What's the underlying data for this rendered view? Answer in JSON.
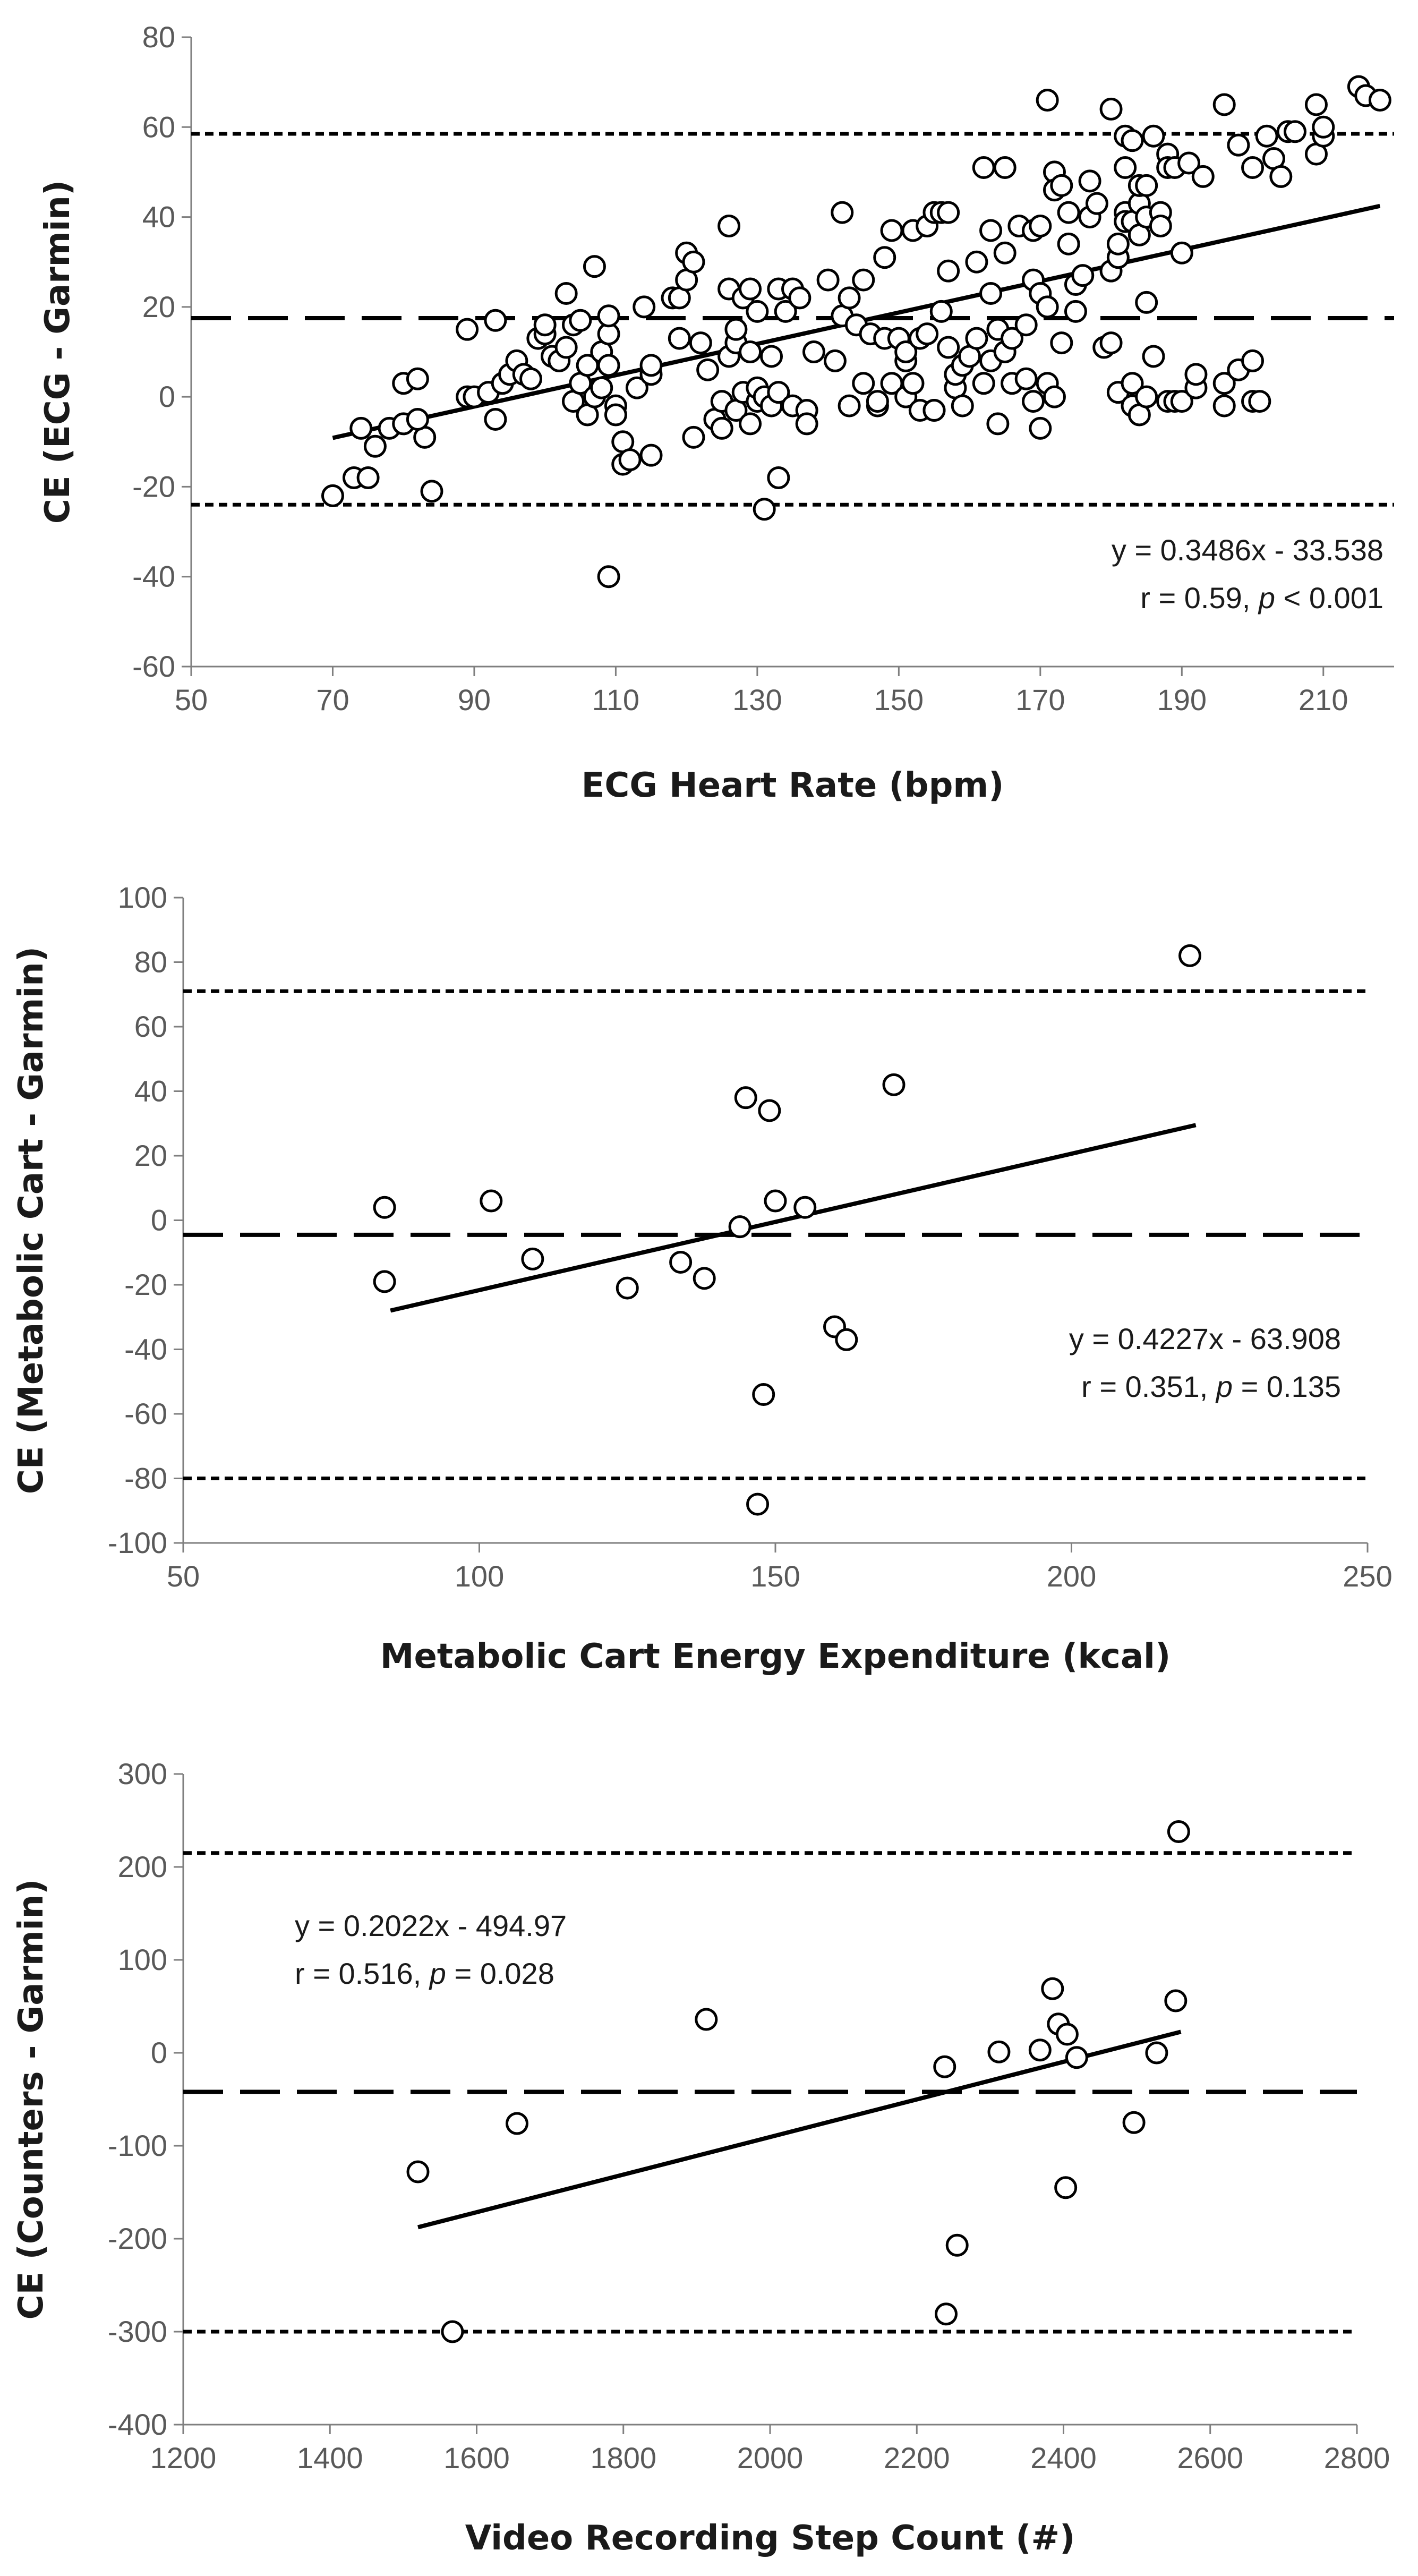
{
  "chart_data": [
    {
      "type": "scatter",
      "title": "",
      "xlabel": "ECG Heart Rate (bpm)",
      "ylabel": "CE (ECG - Garmin)",
      "xlim": [
        50,
        220
      ],
      "ylim": [
        -60,
        80
      ],
      "xticks": [
        50,
        70,
        90,
        110,
        130,
        150,
        170,
        190,
        210
      ],
      "yticks": [
        -60,
        -40,
        -20,
        0,
        20,
        40,
        60,
        80
      ],
      "reference_lines": {
        "mean": 17.5,
        "upper_loa": 58.5,
        "lower_loa": -24
      },
      "regression": {
        "slope": 0.3486,
        "intercept": -33.538,
        "x_range": [
          70,
          218
        ]
      },
      "annotation": {
        "equation": "y = 0.3486x - 33.538",
        "stat_prefix": "r = 0.59, ",
        "stat_italic": "p",
        "stat_suffix": " < 0.001"
      },
      "points": [
        [
          70,
          -22
        ],
        [
          73,
          -18
        ],
        [
          74,
          -7
        ],
        [
          75,
          -18
        ],
        [
          76,
          -11
        ],
        [
          78,
          -7
        ],
        [
          80,
          -6
        ],
        [
          80,
          3
        ],
        [
          82,
          4
        ],
        [
          83,
          -9
        ],
        [
          84,
          -21
        ],
        [
          82,
          -5
        ],
        [
          89,
          0
        ],
        [
          89,
          15
        ],
        [
          90,
          0
        ],
        [
          92,
          1
        ],
        [
          93,
          -5
        ],
        [
          93,
          17
        ],
        [
          94,
          3
        ],
        [
          95,
          5
        ],
        [
          96,
          8
        ],
        [
          97,
          5
        ],
        [
          98,
          4
        ],
        [
          99,
          13
        ],
        [
          100,
          14
        ],
        [
          100,
          16
        ],
        [
          101,
          9
        ],
        [
          102,
          8
        ],
        [
          103,
          11
        ],
        [
          103,
          23
        ],
        [
          104,
          -1
        ],
        [
          104,
          16
        ],
        [
          105,
          17
        ],
        [
          105,
          3
        ],
        [
          106,
          -4
        ],
        [
          106,
          7
        ],
        [
          107,
          0
        ],
        [
          107,
          29
        ],
        [
          108,
          10
        ],
        [
          108,
          2
        ],
        [
          109,
          7
        ],
        [
          109,
          14
        ],
        [
          109,
          18
        ],
        [
          110,
          -2
        ],
        [
          110,
          -4
        ],
        [
          109,
          -40
        ],
        [
          111,
          -10
        ],
        [
          111,
          -15
        ],
        [
          112,
          -14
        ],
        [
          113,
          2
        ],
        [
          114,
          20
        ],
        [
          115,
          -13
        ],
        [
          115,
          5
        ],
        [
          115,
          7
        ],
        [
          118,
          22
        ],
        [
          119,
          13
        ],
        [
          119,
          22
        ],
        [
          120,
          26
        ],
        [
          120,
          32
        ],
        [
          121,
          30
        ],
        [
          121,
          -9
        ],
        [
          122,
          12
        ],
        [
          123,
          6
        ],
        [
          124,
          -5
        ],
        [
          125,
          -1
        ],
        [
          125,
          -7
        ],
        [
          126,
          9
        ],
        [
          126,
          24
        ],
        [
          126,
          38
        ],
        [
          127,
          -3
        ],
        [
          127,
          12
        ],
        [
          127,
          15
        ],
        [
          128,
          22
        ],
        [
          128,
          1
        ],
        [
          129,
          10
        ],
        [
          129,
          24
        ],
        [
          129,
          -6
        ],
        [
          130,
          -1
        ],
        [
          130,
          2
        ],
        [
          130,
          19
        ],
        [
          131,
          -25
        ],
        [
          131,
          0
        ],
        [
          132,
          9
        ],
        [
          132,
          -2
        ],
        [
          133,
          1
        ],
        [
          133,
          24
        ],
        [
          133,
          -18
        ],
        [
          134,
          19
        ],
        [
          135,
          -2
        ],
        [
          135,
          24
        ],
        [
          136,
          22
        ],
        [
          137,
          -3
        ],
        [
          137,
          -6
        ],
        [
          138,
          10
        ],
        [
          140,
          26
        ],
        [
          141,
          8
        ],
        [
          142,
          41
        ],
        [
          142,
          18
        ],
        [
          143,
          -2
        ],
        [
          143,
          22
        ],
        [
          144,
          16
        ],
        [
          145,
          3
        ],
        [
          145,
          26
        ],
        [
          146,
          14
        ],
        [
          147,
          -2
        ],
        [
          147,
          -1
        ],
        [
          148,
          31
        ],
        [
          148,
          13
        ],
        [
          149,
          37
        ],
        [
          149,
          3
        ],
        [
          150,
          13
        ],
        [
          151,
          0
        ],
        [
          151,
          8
        ],
        [
          151,
          10
        ],
        [
          152,
          37
        ],
        [
          152,
          3
        ],
        [
          153,
          13
        ],
        [
          153,
          -3
        ],
        [
          154,
          38
        ],
        [
          154,
          14
        ],
        [
          155,
          -3
        ],
        [
          155,
          -3
        ],
        [
          155,
          41
        ],
        [
          156,
          41
        ],
        [
          156,
          19
        ],
        [
          157,
          41
        ],
        [
          157,
          11
        ],
        [
          157,
          28
        ],
        [
          158,
          2
        ],
        [
          158,
          5
        ],
        [
          159,
          -2
        ],
        [
          159,
          7
        ],
        [
          160,
          9
        ],
        [
          161,
          13
        ],
        [
          161,
          30
        ],
        [
          162,
          3
        ],
        [
          162,
          51
        ],
        [
          163,
          8
        ],
        [
          163,
          23
        ],
        [
          163,
          37
        ],
        [
          164,
          15
        ],
        [
          164,
          -6
        ],
        [
          165,
          51
        ],
        [
          165,
          32
        ],
        [
          165,
          10
        ],
        [
          166,
          3
        ],
        [
          166,
          13
        ],
        [
          167,
          38
        ],
        [
          168,
          4
        ],
        [
          168,
          16
        ],
        [
          169,
          37
        ],
        [
          169,
          26
        ],
        [
          169,
          -1
        ],
        [
          170,
          38
        ],
        [
          170,
          23
        ],
        [
          170,
          -7
        ],
        [
          171,
          66
        ],
        [
          171,
          20
        ],
        [
          171,
          3
        ],
        [
          172,
          0
        ],
        [
          172,
          50
        ],
        [
          172,
          46
        ],
        [
          173,
          12
        ],
        [
          173,
          47
        ],
        [
          174,
          34
        ],
        [
          174,
          41
        ],
        [
          175,
          25
        ],
        [
          175,
          19
        ],
        [
          176,
          27
        ],
        [
          177,
          48
        ],
        [
          177,
          40
        ],
        [
          178,
          43
        ],
        [
          179,
          11
        ],
        [
          180,
          12
        ],
        [
          180,
          64
        ],
        [
          180,
          28
        ],
        [
          181,
          1
        ],
        [
          181,
          31
        ],
        [
          181,
          34
        ],
        [
          182,
          51
        ],
        [
          182,
          58
        ],
        [
          182,
          41
        ],
        [
          182,
          39
        ],
        [
          183,
          3
        ],
        [
          183,
          -2
        ],
        [
          183,
          57
        ],
        [
          183,
          39
        ],
        [
          184,
          43
        ],
        [
          184,
          36
        ],
        [
          184,
          47
        ],
        [
          184,
          -4
        ],
        [
          185,
          0
        ],
        [
          185,
          21
        ],
        [
          185,
          40
        ],
        [
          185,
          47
        ],
        [
          186,
          58
        ],
        [
          186,
          9
        ],
        [
          187,
          41
        ],
        [
          187,
          38
        ],
        [
          188,
          -1
        ],
        [
          188,
          54
        ],
        [
          188,
          51
        ],
        [
          189,
          -1
        ],
        [
          189,
          51
        ],
        [
          190,
          -1
        ],
        [
          190,
          32
        ],
        [
          191,
          52
        ],
        [
          192,
          2
        ],
        [
          192,
          5
        ],
        [
          193,
          49
        ],
        [
          196,
          -2
        ],
        [
          196,
          3
        ],
        [
          196,
          65
        ],
        [
          198,
          56
        ],
        [
          198,
          6
        ],
        [
          200,
          -1
        ],
        [
          200,
          8
        ],
        [
          200,
          51
        ],
        [
          201,
          -1
        ],
        [
          202,
          58
        ],
        [
          203,
          53
        ],
        [
          204,
          49
        ],
        [
          205,
          59
        ],
        [
          206,
          59
        ],
        [
          209,
          54
        ],
        [
          209,
          65
        ],
        [
          210,
          58
        ],
        [
          210,
          60
        ],
        [
          215,
          69
        ],
        [
          216,
          67
        ],
        [
          218,
          66
        ]
      ]
    },
    {
      "type": "scatter",
      "title": "",
      "xlabel": "Metabolic Cart Energy Expenditure (kcal)",
      "ylabel": "CE (Metabolic Cart - Garmin)",
      "xlim": [
        50,
        250
      ],
      "ylim": [
        -100,
        100
      ],
      "xticks": [
        50,
        100,
        150,
        200,
        250
      ],
      "yticks": [
        -100,
        -80,
        -60,
        -40,
        -20,
        0,
        20,
        40,
        60,
        80,
        100
      ],
      "reference_lines": {
        "mean": -4.5,
        "upper_loa": 71,
        "lower_loa": -80
      },
      "regression": {
        "slope": 0.4227,
        "intercept": -63.908,
        "x_range": [
          85,
          221
        ]
      },
      "annotation": {
        "equation": "y = 0.4227x - 63.908",
        "stat_prefix": "r = 0.351, ",
        "stat_italic": "p",
        "stat_suffix": " = 0.135"
      },
      "points": [
        [
          84,
          4
        ],
        [
          84,
          -19
        ],
        [
          102,
          6
        ],
        [
          109,
          -12
        ],
        [
          125,
          -21
        ],
        [
          134,
          -13
        ],
        [
          138,
          -18
        ],
        [
          144,
          -2
        ],
        [
          145,
          38
        ],
        [
          147,
          -88
        ],
        [
          148,
          -54
        ],
        [
          149,
          34
        ],
        [
          150,
          6
        ],
        [
          155,
          4
        ],
        [
          160,
          -33
        ],
        [
          162,
          -37
        ],
        [
          170,
          42
        ],
        [
          220,
          82
        ]
      ]
    },
    {
      "type": "scatter",
      "title": "",
      "xlabel": "Video Recording Step Count (#)",
      "ylabel": "CE (Counters - Garmin)",
      "xlim": [
        1200,
        2800
      ],
      "ylim": [
        -400,
        300
      ],
      "xticks": [
        1200,
        1400,
        1600,
        1800,
        2000,
        2200,
        2400,
        2600,
        2800
      ],
      "yticks": [
        -400,
        -300,
        -200,
        -100,
        0,
        100,
        200,
        300
      ],
      "reference_lines": {
        "mean": -42,
        "upper_loa": 215,
        "lower_loa": -300
      },
      "regression": {
        "slope": 0.2022,
        "intercept": -494.97,
        "x_range": [
          1520,
          2560
        ]
      },
      "annotation": {
        "equation": "y = 0.2022x - 494.97",
        "stat_prefix": "r = 0.516, ",
        "stat_italic": "p",
        "stat_suffix": " = 0.028"
      },
      "points": [
        [
          1520,
          -128
        ],
        [
          1567,
          -300
        ],
        [
          1655,
          -76
        ],
        [
          1913,
          36
        ],
        [
          2238,
          -15
        ],
        [
          2240,
          -281
        ],
        [
          2255,
          -207
        ],
        [
          2312,
          1
        ],
        [
          2368,
          3
        ],
        [
          2385,
          69
        ],
        [
          2393,
          31
        ],
        [
          2403,
          -145
        ],
        [
          2405,
          20
        ],
        [
          2418,
          -5
        ],
        [
          2496,
          -75
        ],
        [
          2527,
          0
        ],
        [
          2553,
          56
        ],
        [
          2557,
          238
        ]
      ]
    }
  ]
}
